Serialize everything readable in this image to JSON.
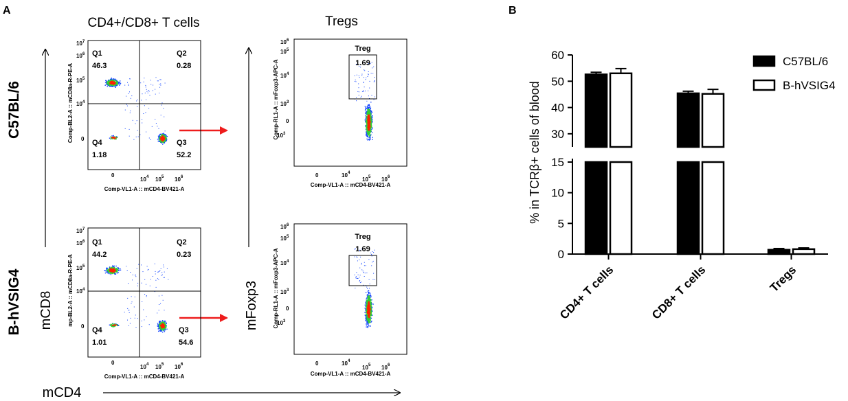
{
  "panel_a": {
    "letter": "A",
    "col1_title": "CD4+/CD8+ T cells",
    "col2_title": "Tregs",
    "row1_label": "C57BL/6",
    "row2_label": "B-hVSIG4",
    "y_axis_cd8": "mCD8",
    "y_axis_foxp3": "mFoxp3",
    "x_axis": "mCD4",
    "quad_x_axis": "Comp-VL1-A :: mCD4-BV421-A",
    "quad_y_axis_top": "Comp-BL2-A :: mCD8a-R-PE-A",
    "quad_y_axis_bottom": "mp-BL2-A :: mCD8a-R-PE-A",
    "treg_y_axis": "Comp-RL1-A :: mFoxp3-APC-A",
    "quad_y_ticks": [
      "7",
      "6",
      "5",
      "4",
      "0"
    ],
    "quad_x_ticks": [
      "0",
      "4",
      "5",
      "6"
    ],
    "treg_y_ticks": [
      "6",
      "5",
      "4",
      "3",
      "0",
      "3"
    ],
    "treg_x_ticks": [
      "0",
      "4",
      "5",
      "6"
    ],
    "tick_base": "10",
    "gate_name": "Treg",
    "plots": {
      "c57_quad": {
        "Q1": "Q1",
        "Q1_val": "46.3",
        "Q2": "Q2",
        "Q2_val": "0.28",
        "Q3": "Q3",
        "Q3_val": "52.2",
        "Q4": "Q4",
        "Q4_val": "1.18"
      },
      "hv_quad": {
        "Q1": "Q1",
        "Q1_val": "44.2",
        "Q2": "Q2",
        "Q2_val": "0.23",
        "Q3": "Q3",
        "Q3_val": "54.6",
        "Q4": "Q4",
        "Q4_val": "1.01"
      },
      "c57_treg": {
        "value": "1.69"
      },
      "hv_treg": {
        "value": "1.69"
      }
    },
    "colors": {
      "arrow": "#ee1c1c",
      "dots_high": "#ff2200",
      "dots_mid": "#33cc33",
      "dots_low": "#1144ff"
    }
  },
  "chart_data": {
    "panel_letter": "B",
    "type": "bar",
    "categories": [
      "CD4+ T cells",
      "CD8+ T cells",
      "Tregs"
    ],
    "series": [
      {
        "name": "C57BL/6",
        "values": [
          52.6,
          45.4,
          0.7
        ],
        "errors": [
          0.8,
          0.8,
          0.2
        ],
        "fill": "#000000"
      },
      {
        "name": "B-hVSIG4",
        "values": [
          53.0,
          45.2,
          0.8
        ],
        "errors": [
          1.8,
          1.7,
          0.2
        ],
        "fill": "#ffffff"
      }
    ],
    "ylabel": "% in TCRβ+ cells of blood",
    "y_axis_break": [
      15,
      25
    ],
    "yticks_upper": [
      "60",
      "50",
      "40",
      "30"
    ],
    "yticks_lower": [
      "15",
      "10",
      "5",
      "0"
    ],
    "ylim": [
      0,
      60
    ],
    "legend_position": "top-right"
  }
}
